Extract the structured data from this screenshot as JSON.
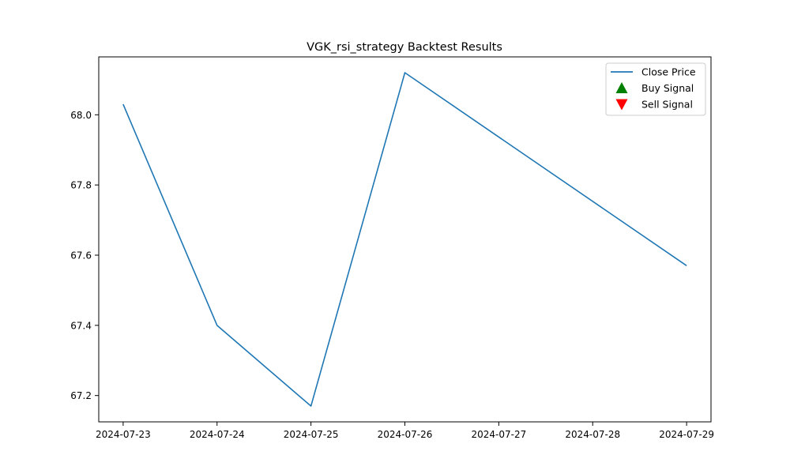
{
  "chart_data": {
    "type": "line",
    "title": "VGK_rsi_strategy Backtest Results",
    "xlabel": "",
    "ylabel": "",
    "x": [
      "2024-07-23",
      "2024-07-24",
      "2024-07-25",
      "2024-07-26",
      "2024-07-29"
    ],
    "x_ticks": [
      "2024-07-23",
      "2024-07-24",
      "2024-07-25",
      "2024-07-26",
      "2024-07-27",
      "2024-07-28",
      "2024-07-29"
    ],
    "y_ticks": [
      "67.2",
      "67.4",
      "67.6",
      "67.8",
      "68.0"
    ],
    "xlim": [
      "2024-07-22T17:46",
      "2024-07-29T06:14"
    ],
    "ylim": [
      67.125,
      68.165
    ],
    "grid": false,
    "legend_position": "top-right",
    "series": [
      {
        "name": "Close Price",
        "values": [
          68.03,
          67.4,
          67.17,
          68.12,
          67.57
        ],
        "color": "#1f77b4"
      }
    ],
    "legend": [
      {
        "label": "Close Price",
        "marker": "line",
        "color": "#1f77b4"
      },
      {
        "label": "Buy Signal",
        "marker": "triangle-up",
        "color": "#008000"
      },
      {
        "label": "Sell Signal",
        "marker": "triangle-down",
        "color": "#ff0000"
      }
    ]
  }
}
